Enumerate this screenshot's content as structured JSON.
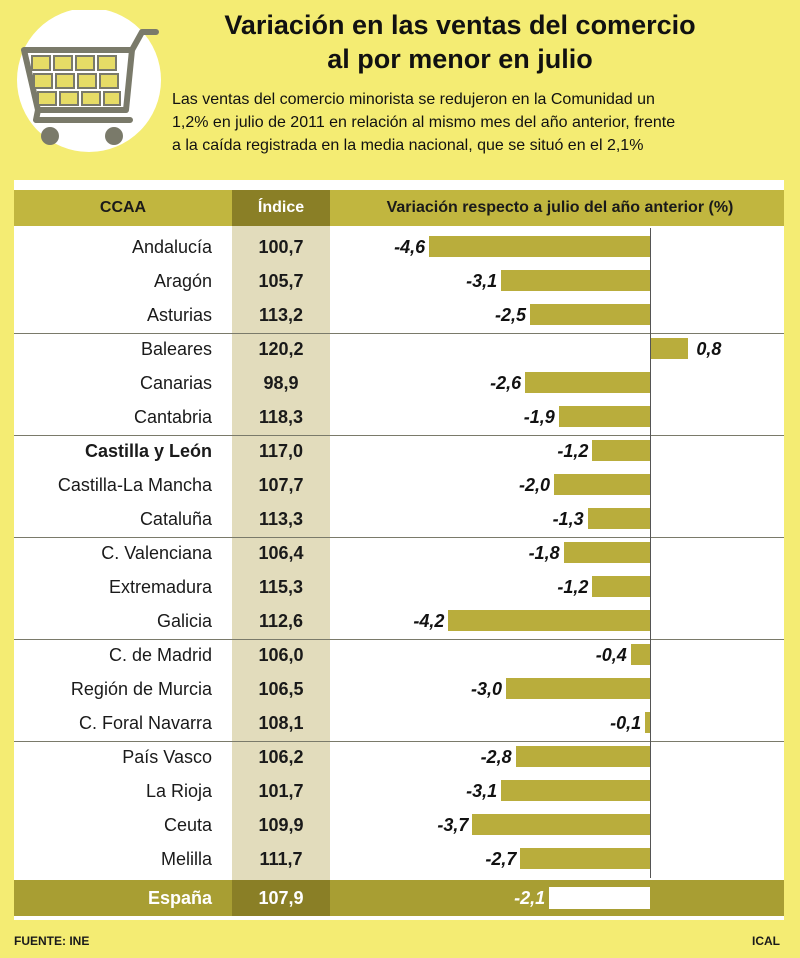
{
  "title_line1": "Variación en las ventas del comercio",
  "title_line2": "al por menor en julio",
  "subtitle_line1": "Las ventas del comercio minorista se redujeron en la Comunidad un",
  "subtitle_line2": "1,2% en julio de 2011 en relación al mismo mes del año anterior, frente",
  "subtitle_line3": "a la caída registrada en la media nacional, que se situó en el 2,1%",
  "header": {
    "ccaa": "CCAA",
    "indice": "Índice",
    "variacion": "Variación respecto a julio del año anterior (%)"
  },
  "colors": {
    "background": "#f4ec73",
    "bar": "#b9ad3c",
    "header": "#c1b63f",
    "total": "#a89e33"
  },
  "icon": "shopping-cart-icon",
  "chart_data": {
    "type": "bar",
    "orientation": "horizontal",
    "title": "Variación en las ventas del comercio al por menor en julio",
    "categories": [
      "Andalucía",
      "Aragón",
      "Asturias",
      "Baleares",
      "Canarias",
      "Cantabria",
      "Castilla y León",
      "Castilla-La Mancha",
      "Cataluña",
      "C. Valenciana",
      "Extremadura",
      "Galicia",
      "C. de Madrid",
      "Región de Murcia",
      "C. Foral Navarra",
      "País Vasco",
      "La Rioja",
      "Ceuta",
      "Melilla"
    ],
    "indice": [
      "100,7",
      "105,7",
      "113,2",
      "120,2",
      "98,9",
      "118,3",
      "117,0",
      "107,7",
      "113,3",
      "106,4",
      "115,3",
      "112,6",
      "106,0",
      "106,5",
      "108,1",
      "106,2",
      "101,7",
      "109,9",
      "111,7"
    ],
    "values": [
      -4.6,
      -3.1,
      -2.5,
      0.8,
      -2.6,
      -1.9,
      -1.2,
      -2.0,
      -1.3,
      -1.8,
      -1.2,
      -4.2,
      -0.4,
      -3.0,
      -0.1,
      -2.8,
      -3.1,
      -3.7,
      -2.7
    ],
    "value_labels": [
      "-4,6",
      "-3,1",
      "-2,5",
      "0,8",
      "-2,6",
      "-1,9",
      "-1,2",
      "-2,0",
      "-1,3",
      "-1,8",
      "-1,2",
      "-4,2",
      "-0,4",
      "-3,0",
      "-0,1",
      "-2,8",
      "-3,1",
      "-3,7",
      "-2,7"
    ],
    "highlight": "Castilla y León",
    "total": {
      "label": "España",
      "indice": "107,9",
      "value": -2.1,
      "value_label": "-2,1"
    },
    "xlim": [
      -5,
      1
    ],
    "grid": false
  },
  "footer": {
    "source": "FUENTE: INE",
    "agency": "ICAL"
  }
}
